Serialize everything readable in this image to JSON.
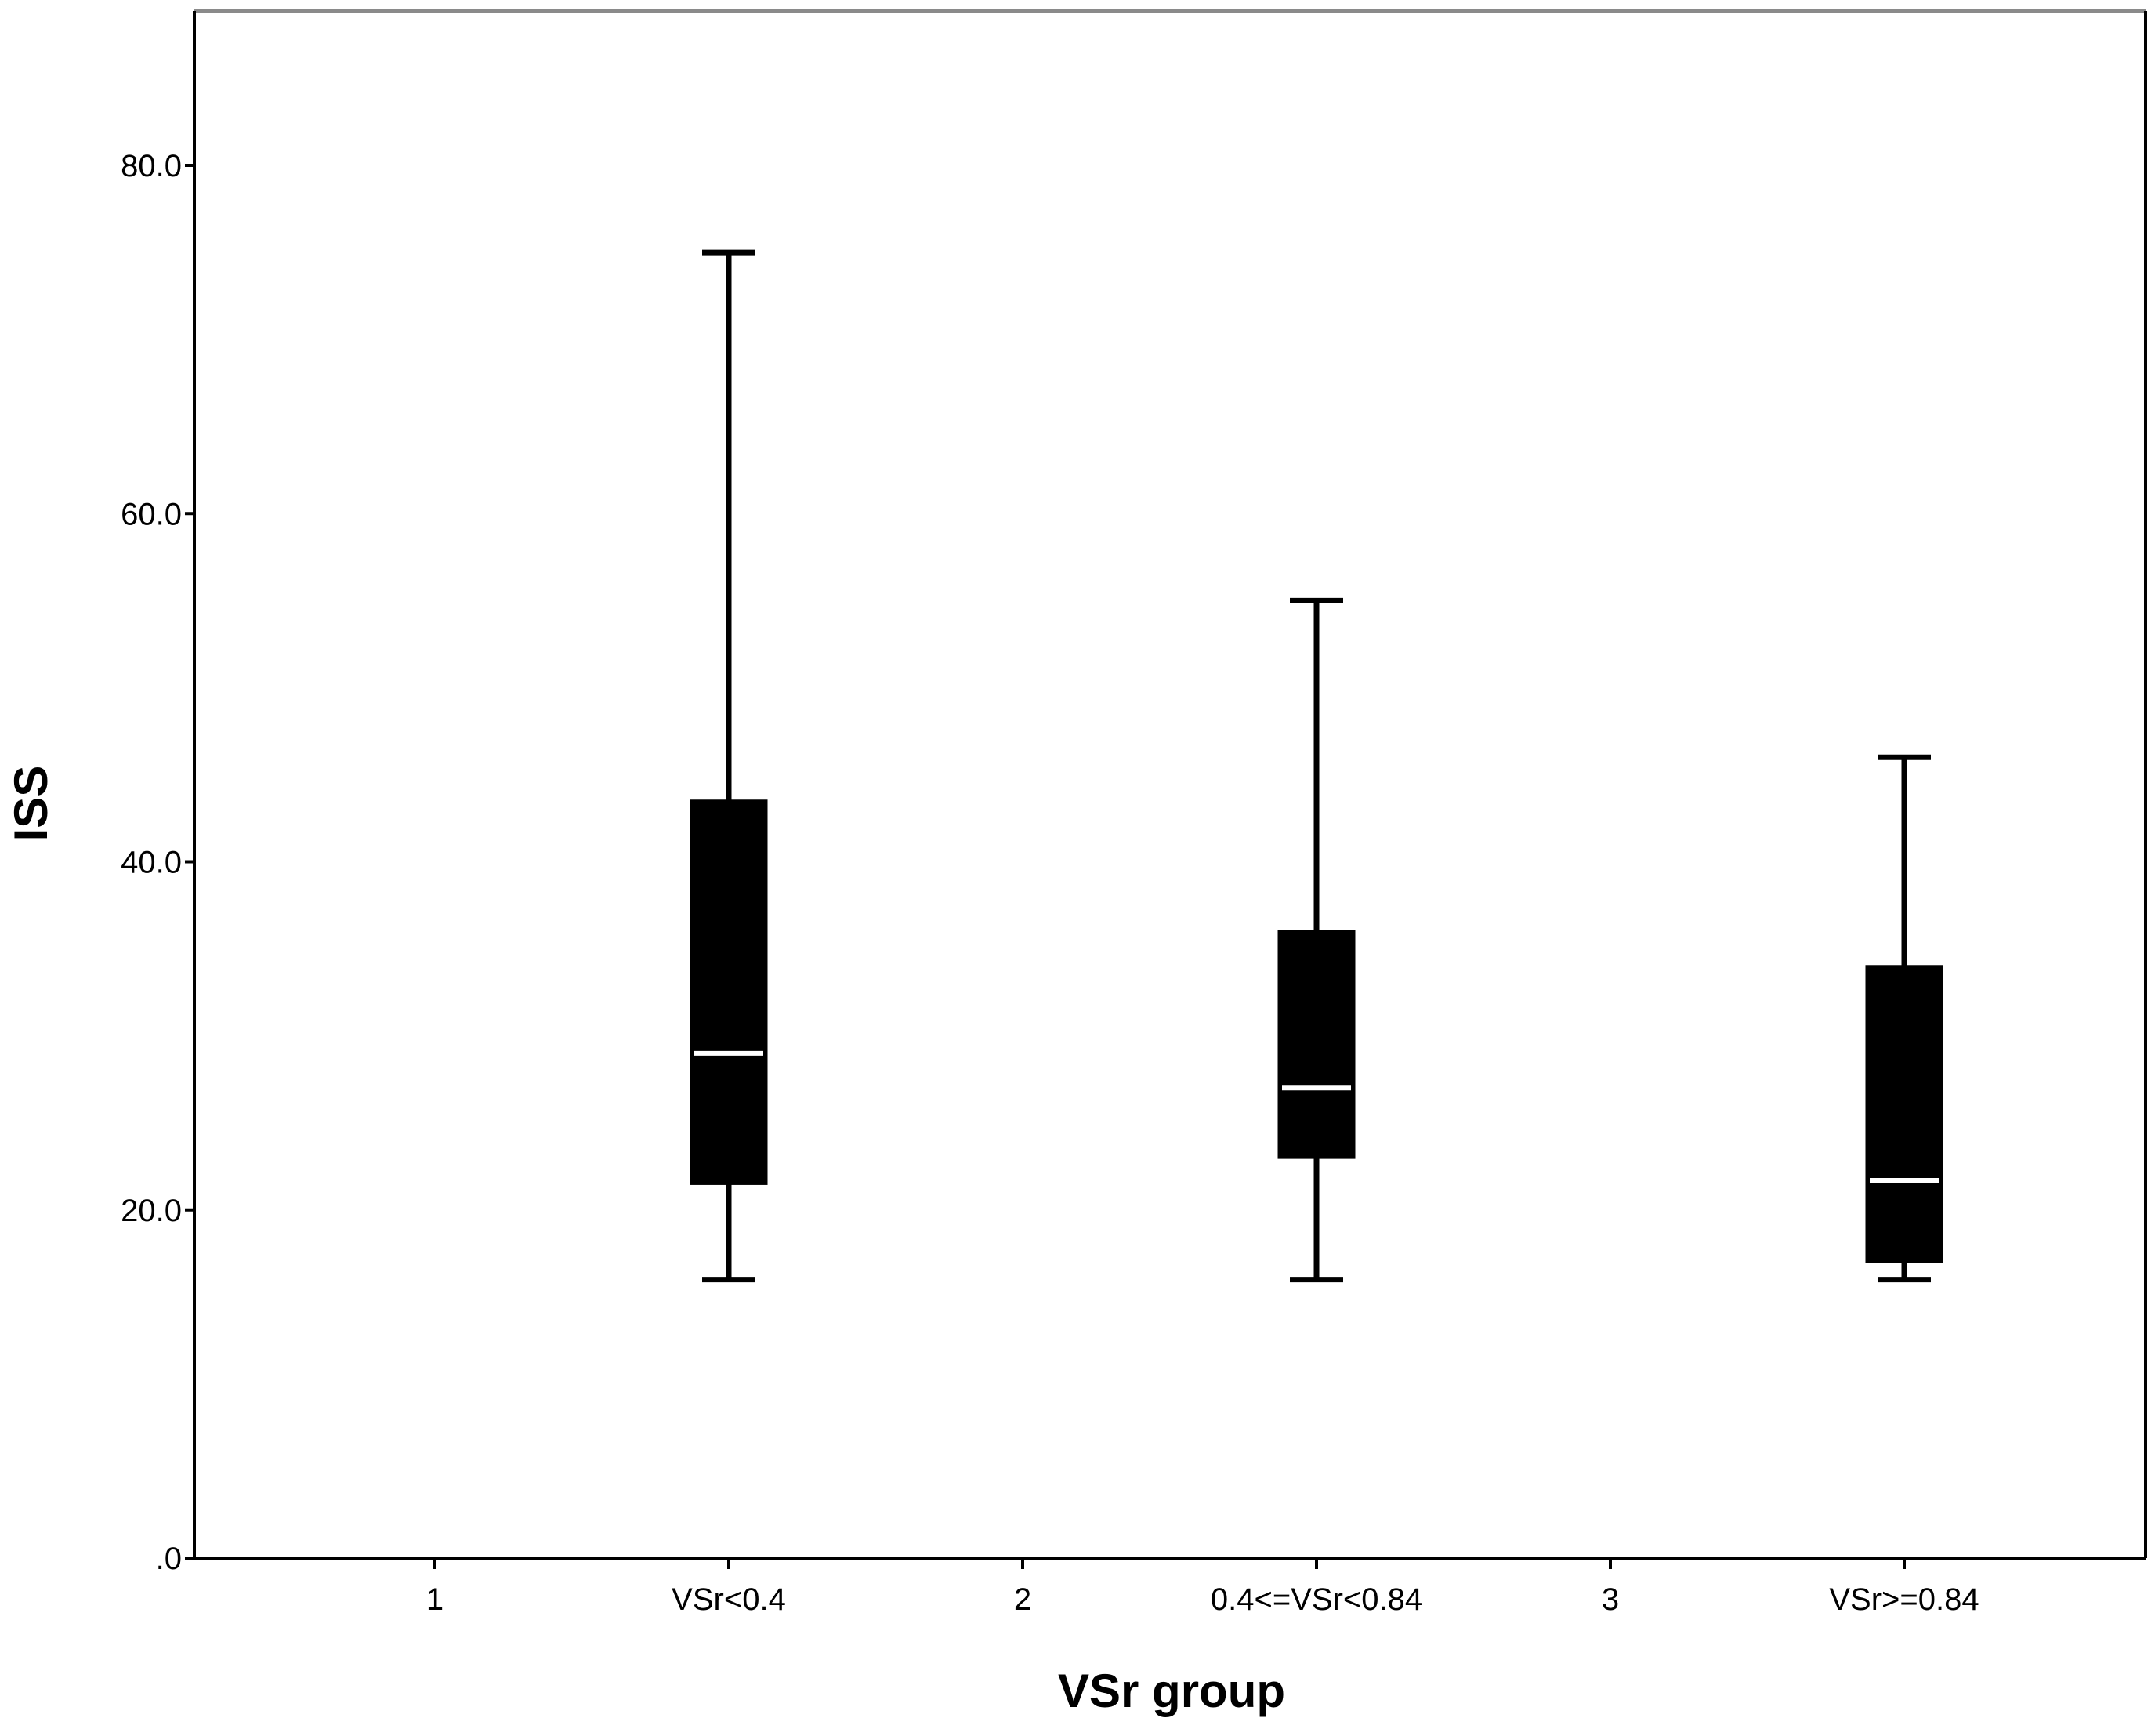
{
  "chart_data": {
    "type": "boxplot",
    "title": "",
    "xlabel": "VSr group",
    "ylabel": "ISS",
    "ylim": [
      0,
      88
    ],
    "yticks": [
      0,
      20,
      40,
      60,
      80
    ],
    "ytick_labels": [
      ".0",
      "20.0",
      "40.0",
      "60.0",
      "80.0"
    ],
    "x_categories": [
      "1",
      "VSr<0.4",
      "2",
      "0.4<=VSr<0.84",
      "3",
      "VSr>=0.84"
    ],
    "boxes": [
      {
        "category": "VSr<0.4",
        "min": 16,
        "q1": 21.5,
        "median": 29,
        "q3": 43.5,
        "max": 75
      },
      {
        "category": "0.4<=VSr<0.84",
        "min": 16,
        "q1": 23,
        "median": 27,
        "q3": 36,
        "max": 55
      },
      {
        "category": "VSr>=0.84",
        "min": 16,
        "q1": 17,
        "median": 21.7,
        "q3": 34,
        "max": 46
      }
    ],
    "grid": false,
    "colors": {
      "box_fill": "#000000",
      "median": "#ffffff",
      "whisker": "#000000",
      "frame_top": "#8a8a8a"
    }
  }
}
